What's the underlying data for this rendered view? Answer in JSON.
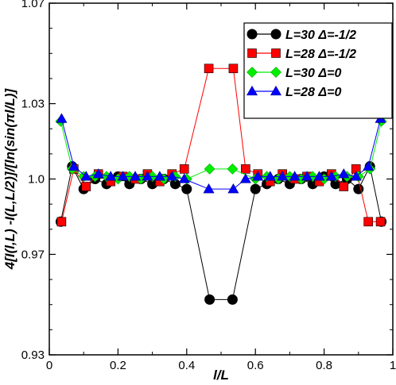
{
  "chart_data": {
    "type": "line",
    "xlabel": "l/L",
    "ylabel": "4[I(l,L) -I(L,L/2)]/[ln(sin(πl/L)]",
    "xlim": [
      0,
      1
    ],
    "ylim": [
      0.93,
      1.07
    ],
    "x_ticks": [
      "0",
      "0.2",
      "0.4",
      "0.6",
      "0.8",
      "1"
    ],
    "x_tick_values": [
      0,
      0.2,
      0.4,
      0.6,
      0.8,
      1.0
    ],
    "y_ticks": [
      "0.93",
      "0.97",
      "1.0",
      "1.03",
      "1.07"
    ],
    "y_tick_values": [
      0.93,
      0.97,
      1.0,
      1.03,
      1.07
    ],
    "legend_position": "top-right",
    "series": [
      {
        "name": "L=30 Δ=-1/2",
        "color": "#000000",
        "marker": "circle",
        "x": [
          0.0333,
          0.0667,
          0.1,
          0.1333,
          0.1667,
          0.2,
          0.2333,
          0.2667,
          0.3,
          0.3333,
          0.3667,
          0.4,
          0.4667,
          0.5333,
          0.6,
          0.6333,
          0.6667,
          0.7,
          0.7333,
          0.7667,
          0.8,
          0.8333,
          0.8667,
          0.9,
          0.9333,
          0.9667
        ],
        "y": [
          0.983,
          1.005,
          0.996,
          1.0,
          0.998,
          1.001,
          0.998,
          1.0,
          0.998,
          1.0,
          0.998,
          0.996,
          0.952,
          0.952,
          0.996,
          0.998,
          1.0,
          0.998,
          1.0,
          0.998,
          1.001,
          0.998,
          1.0,
          0.996,
          1.005,
          0.983
        ]
      },
      {
        "name": "L=28 Δ=-1/2",
        "color": "#ff0000",
        "marker": "square",
        "x": [
          0.0357,
          0.0714,
          0.1071,
          0.1429,
          0.1786,
          0.2143,
          0.25,
          0.2857,
          0.3214,
          0.3571,
          0.3929,
          0.4643,
          0.5357,
          0.5714,
          0.6071,
          0.6429,
          0.6786,
          0.7143,
          0.75,
          0.7857,
          0.8214,
          0.8571,
          0.8929,
          0.9286,
          0.9643
        ],
        "y": [
          0.983,
          1.004,
          0.997,
          1.002,
          0.999,
          1.001,
          1.0,
          1.002,
          0.999,
          1.002,
          1.004,
          1.044,
          1.044,
          1.004,
          1.002,
          0.999,
          1.002,
          1.0,
          1.001,
          0.999,
          1.002,
          0.997,
          1.004,
          0.983,
          0.983
        ]
      },
      {
        "name": "L=30 Δ=0",
        "color": "#00ee00",
        "marker": "diamond",
        "x": [
          0.0333,
          0.0667,
          0.1,
          0.1333,
          0.1667,
          0.2,
          0.2333,
          0.2667,
          0.3,
          0.3333,
          0.3667,
          0.4,
          0.4667,
          0.5333,
          0.6,
          0.6333,
          0.6667,
          0.7,
          0.7333,
          0.7667,
          0.8,
          0.8333,
          0.8667,
          0.9,
          0.9333,
          0.9667
        ],
        "y": [
          1.023,
          1.004,
          1.001,
          1.001,
          1.001,
          1.0,
          1.001,
          1.0,
          1.001,
          1.0,
          1.001,
          1.0,
          1.004,
          1.004,
          1.0,
          1.001,
          1.0,
          1.001,
          1.0,
          1.001,
          1.0,
          1.001,
          1.001,
          1.001,
          1.004,
          1.023
        ]
      },
      {
        "name": "L=28 Δ=0",
        "color": "#0000ff",
        "marker": "triangle",
        "x": [
          0.0357,
          0.0714,
          0.1071,
          0.1429,
          0.1786,
          0.2143,
          0.25,
          0.2857,
          0.3214,
          0.3571,
          0.3929,
          0.4643,
          0.5357,
          0.5714,
          0.6071,
          0.6429,
          0.6786,
          0.7143,
          0.75,
          0.7857,
          0.8214,
          0.8571,
          0.8929,
          0.9286,
          0.9643
        ],
        "y": [
          1.024,
          1.005,
          1.001,
          1.002,
          1.001,
          1.001,
          1.001,
          1.001,
          1.001,
          1.001,
          1.0,
          0.996,
          0.996,
          1.0,
          1.001,
          1.001,
          1.001,
          1.001,
          1.001,
          1.001,
          1.001,
          1.002,
          1.001,
          1.005,
          1.024
        ]
      }
    ]
  }
}
